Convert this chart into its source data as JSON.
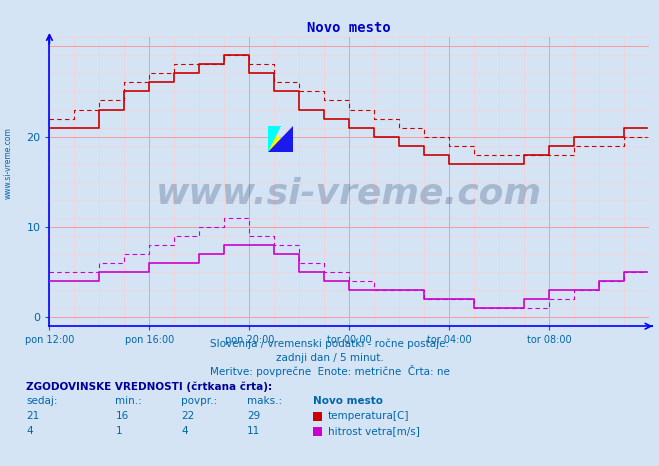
{
  "title": "Novo mesto",
  "title_color": "#0000cc",
  "background_color": "#d4e4f4",
  "plot_bg_color": "#d4e4f4",
  "grid_major_color": "#ff9999",
  "grid_minor_color": "#ffcccc",
  "axis_color": "#0000ff",
  "tick_color": "#0066aa",
  "ylabel_ticks": [
    0,
    10,
    20
  ],
  "ylim": [
    -1,
    31
  ],
  "xlim": [
    0,
    288
  ],
  "x_tick_labels": [
    "pon 12:00",
    "pon 16:00",
    "pon 20:00",
    "tor 00:00",
    "tor 04:00",
    "tor 08:00"
  ],
  "x_tick_positions": [
    0,
    48,
    96,
    144,
    192,
    240
  ],
  "temp_color": "#cc0000",
  "wind_color": "#cc00cc",
  "subtitle1": "Slovenija / vremenski podatki - ročne postaje.",
  "subtitle2": "zadnji dan / 5 minut.",
  "subtitle3": "Meritve: povprečne  Enote: metrične  Črta: ne",
  "legend_title": "ZGODOVINSKE VREDNOSTI (črtkana črta):",
  "legend_station": "Novo mesto",
  "legend_rows": [
    {
      "values": [
        21,
        16,
        22,
        29
      ],
      "label": "temperatura[C]",
      "color": "#cc0000"
    },
    {
      "values": [
        4,
        1,
        4,
        11
      ],
      "label": "hitrost vetra[m/s]",
      "color": "#cc00cc"
    }
  ],
  "watermark_text": "www.si-vreme.com",
  "watermark_color": "#1a3a6a",
  "watermark_alpha": 0.25,
  "temp_data": [
    21,
    21,
    21,
    21,
    21,
    21,
    21,
    21,
    21,
    21,
    21,
    21,
    21,
    21,
    21,
    21,
    21,
    21,
    21,
    21,
    21,
    21,
    21,
    21,
    23,
    23,
    23,
    23,
    23,
    23,
    23,
    23,
    23,
    23,
    23,
    23,
    25,
    25,
    25,
    25,
    25,
    25,
    25,
    25,
    25,
    25,
    25,
    25,
    26,
    26,
    26,
    26,
    26,
    26,
    26,
    26,
    26,
    26,
    26,
    26,
    27,
    27,
    27,
    27,
    27,
    27,
    27,
    27,
    27,
    27,
    27,
    27,
    28,
    28,
    28,
    28,
    28,
    28,
    28,
    28,
    28,
    28,
    28,
    28,
    29,
    29,
    29,
    29,
    29,
    29,
    29,
    29,
    29,
    29,
    29,
    29,
    27,
    27,
    27,
    27,
    27,
    27,
    27,
    27,
    27,
    27,
    27,
    27,
    25,
    25,
    25,
    25,
    25,
    25,
    25,
    25,
    25,
    25,
    25,
    25,
    23,
    23,
    23,
    23,
    23,
    23,
    23,
    23,
    23,
    23,
    23,
    23,
    22,
    22,
    22,
    22,
    22,
    22,
    22,
    22,
    22,
    22,
    22,
    22,
    21,
    21,
    21,
    21,
    21,
    21,
    21,
    21,
    21,
    21,
    21,
    21,
    20,
    20,
    20,
    20,
    20,
    20,
    20,
    20,
    20,
    20,
    20,
    20,
    19,
    19,
    19,
    19,
    19,
    19,
    19,
    19,
    19,
    19,
    19,
    19,
    18,
    18,
    18,
    18,
    18,
    18,
    18,
    18,
    18,
    18,
    18,
    18,
    17,
    17,
    17,
    17,
    17,
    17,
    17,
    17,
    17,
    17,
    17,
    17,
    17,
    17,
    17,
    17,
    17,
    17,
    17,
    17,
    17,
    17,
    17,
    17,
    17,
    17,
    17,
    17,
    17,
    17,
    17,
    17,
    17,
    17,
    17,
    17,
    18,
    18,
    18,
    18,
    18,
    18,
    18,
    18,
    18,
    18,
    18,
    18,
    19,
    19,
    19,
    19,
    19,
    19,
    19,
    19,
    19,
    19,
    19,
    19,
    20,
    20,
    20,
    20,
    20,
    20,
    20,
    20,
    20,
    20,
    20,
    20,
    20,
    20,
    20,
    20,
    20,
    20,
    20,
    20,
    20,
    20,
    20,
    20,
    21,
    21,
    21,
    21,
    21,
    21,
    21,
    21,
    21,
    21,
    21,
    21,
    21,
    21,
    21,
    21,
    21,
    21,
    21,
    21,
    21,
    21,
    21,
    21
  ],
  "temp_hist_data": [
    22,
    22,
    22,
    22,
    22,
    22,
    22,
    22,
    22,
    22,
    22,
    22,
    23,
    23,
    23,
    23,
    23,
    23,
    23,
    23,
    23,
    23,
    23,
    23,
    24,
    24,
    24,
    24,
    24,
    24,
    24,
    24,
    24,
    24,
    24,
    24,
    26,
    26,
    26,
    26,
    26,
    26,
    26,
    26,
    26,
    26,
    26,
    26,
    27,
    27,
    27,
    27,
    27,
    27,
    27,
    27,
    27,
    27,
    27,
    27,
    28,
    28,
    28,
    28,
    28,
    28,
    28,
    28,
    28,
    28,
    28,
    28,
    28,
    28,
    28,
    28,
    28,
    28,
    28,
    28,
    28,
    28,
    28,
    28,
    29,
    29,
    29,
    29,
    29,
    29,
    29,
    29,
    29,
    29,
    29,
    29,
    28,
    28,
    28,
    28,
    28,
    28,
    28,
    28,
    28,
    28,
    28,
    28,
    26,
    26,
    26,
    26,
    26,
    26,
    26,
    26,
    26,
    26,
    26,
    26,
    25,
    25,
    25,
    25,
    25,
    25,
    25,
    25,
    25,
    25,
    25,
    25,
    24,
    24,
    24,
    24,
    24,
    24,
    24,
    24,
    24,
    24,
    24,
    24,
    23,
    23,
    23,
    23,
    23,
    23,
    23,
    23,
    23,
    23,
    23,
    23,
    22,
    22,
    22,
    22,
    22,
    22,
    22,
    22,
    22,
    22,
    22,
    22,
    21,
    21,
    21,
    21,
    21,
    21,
    21,
    21,
    21,
    21,
    21,
    21,
    20,
    20,
    20,
    20,
    20,
    20,
    20,
    20,
    20,
    20,
    20,
    20,
    19,
    19,
    19,
    19,
    19,
    19,
    19,
    19,
    19,
    19,
    19,
    19,
    18,
    18,
    18,
    18,
    18,
    18,
    18,
    18,
    18,
    18,
    18,
    18,
    18,
    18,
    18,
    18,
    18,
    18,
    18,
    18,
    18,
    18,
    18,
    18,
    18,
    18,
    18,
    18,
    18,
    18,
    18,
    18,
    18,
    18,
    18,
    18,
    18,
    18,
    18,
    18,
    18,
    18,
    18,
    18,
    18,
    18,
    18,
    18,
    19,
    19,
    19,
    19,
    19,
    19,
    19,
    19,
    19,
    19,
    19,
    19,
    19,
    19,
    19,
    19,
    19,
    19,
    19,
    19,
    19,
    19,
    19,
    19,
    20,
    20,
    20,
    20,
    20,
    20,
    20,
    20,
    20,
    20,
    20,
    20,
    20,
    20,
    20,
    20,
    20,
    20,
    20,
    20,
    20,
    20,
    20,
    20
  ],
  "wind_data": [
    4,
    4,
    4,
    4,
    4,
    4,
    4,
    4,
    4,
    4,
    4,
    4,
    4,
    4,
    4,
    4,
    4,
    4,
    4,
    4,
    4,
    4,
    4,
    4,
    5,
    5,
    5,
    5,
    5,
    5,
    5,
    5,
    5,
    5,
    5,
    5,
    5,
    5,
    5,
    5,
    5,
    5,
    5,
    5,
    5,
    5,
    5,
    5,
    6,
    6,
    6,
    6,
    6,
    6,
    6,
    6,
    6,
    6,
    6,
    6,
    6,
    6,
    6,
    6,
    6,
    6,
    6,
    6,
    6,
    6,
    6,
    6,
    7,
    7,
    7,
    7,
    7,
    7,
    7,
    7,
    7,
    7,
    7,
    7,
    8,
    8,
    8,
    8,
    8,
    8,
    8,
    8,
    8,
    8,
    8,
    8,
    8,
    8,
    8,
    8,
    8,
    8,
    8,
    8,
    8,
    8,
    8,
    8,
    7,
    7,
    7,
    7,
    7,
    7,
    7,
    7,
    7,
    7,
    7,
    7,
    5,
    5,
    5,
    5,
    5,
    5,
    5,
    5,
    5,
    5,
    5,
    5,
    4,
    4,
    4,
    4,
    4,
    4,
    4,
    4,
    4,
    4,
    4,
    4,
    3,
    3,
    3,
    3,
    3,
    3,
    3,
    3,
    3,
    3,
    3,
    3,
    3,
    3,
    3,
    3,
    3,
    3,
    3,
    3,
    3,
    3,
    3,
    3,
    3,
    3,
    3,
    3,
    3,
    3,
    3,
    3,
    3,
    3,
    3,
    3,
    2,
    2,
    2,
    2,
    2,
    2,
    2,
    2,
    2,
    2,
    2,
    2,
    2,
    2,
    2,
    2,
    2,
    2,
    2,
    2,
    2,
    2,
    2,
    2,
    1,
    1,
    1,
    1,
    1,
    1,
    1,
    1,
    1,
    1,
    1,
    1,
    1,
    1,
    1,
    1,
    1,
    1,
    1,
    1,
    1,
    1,
    1,
    1,
    2,
    2,
    2,
    2,
    2,
    2,
    2,
    2,
    2,
    2,
    2,
    2,
    3,
    3,
    3,
    3,
    3,
    3,
    3,
    3,
    3,
    3,
    3,
    3,
    3,
    3,
    3,
    3,
    3,
    3,
    3,
    3,
    3,
    3,
    3,
    3,
    4,
    4,
    4,
    4,
    4,
    4,
    4,
    4,
    4,
    4,
    4,
    4,
    5,
    5,
    5,
    5,
    5,
    5,
    5,
    5,
    5,
    5,
    5,
    5,
    4,
    4,
    4,
    4,
    4,
    4,
    4,
    4,
    4,
    4,
    4,
    4
  ],
  "wind_hist_data": [
    5,
    5,
    5,
    5,
    5,
    5,
    5,
    5,
    5,
    5,
    5,
    5,
    5,
    5,
    5,
    5,
    5,
    5,
    5,
    5,
    5,
    5,
    5,
    5,
    6,
    6,
    6,
    6,
    6,
    6,
    6,
    6,
    6,
    6,
    6,
    6,
    7,
    7,
    7,
    7,
    7,
    7,
    7,
    7,
    7,
    7,
    7,
    7,
    8,
    8,
    8,
    8,
    8,
    8,
    8,
    8,
    8,
    8,
    8,
    8,
    9,
    9,
    9,
    9,
    9,
    9,
    9,
    9,
    9,
    9,
    9,
    9,
    10,
    10,
    10,
    10,
    10,
    10,
    10,
    10,
    10,
    10,
    10,
    10,
    11,
    11,
    11,
    11,
    11,
    11,
    11,
    11,
    11,
    11,
    11,
    11,
    9,
    9,
    9,
    9,
    9,
    9,
    9,
    9,
    9,
    9,
    9,
    9,
    8,
    8,
    8,
    8,
    8,
    8,
    8,
    8,
    8,
    8,
    8,
    8,
    6,
    6,
    6,
    6,
    6,
    6,
    6,
    6,
    6,
    6,
    6,
    6,
    5,
    5,
    5,
    5,
    5,
    5,
    5,
    5,
    5,
    5,
    5,
    5,
    4,
    4,
    4,
    4,
    4,
    4,
    4,
    4,
    4,
    4,
    4,
    4,
    3,
    3,
    3,
    3,
    3,
    3,
    3,
    3,
    3,
    3,
    3,
    3,
    3,
    3,
    3,
    3,
    3,
    3,
    3,
    3,
    3,
    3,
    3,
    3,
    2,
    2,
    2,
    2,
    2,
    2,
    2,
    2,
    2,
    2,
    2,
    2,
    2,
    2,
    2,
    2,
    2,
    2,
    2,
    2,
    2,
    2,
    2,
    2,
    1,
    1,
    1,
    1,
    1,
    1,
    1,
    1,
    1,
    1,
    1,
    1,
    1,
    1,
    1,
    1,
    1,
    1,
    1,
    1,
    1,
    1,
    1,
    1,
    1,
    1,
    1,
    1,
    1,
    1,
    1,
    1,
    1,
    1,
    1,
    1,
    2,
    2,
    2,
    2,
    2,
    2,
    2,
    2,
    2,
    2,
    2,
    2,
    3,
    3,
    3,
    3,
    3,
    3,
    3,
    3,
    3,
    3,
    3,
    3,
    4,
    4,
    4,
    4,
    4,
    4,
    4,
    4,
    4,
    4,
    4,
    4,
    5,
    5,
    5,
    5,
    5,
    5,
    5,
    5,
    5,
    5,
    5,
    5,
    5,
    5,
    5,
    5,
    5,
    5,
    5,
    5,
    5,
    5,
    5,
    5
  ]
}
